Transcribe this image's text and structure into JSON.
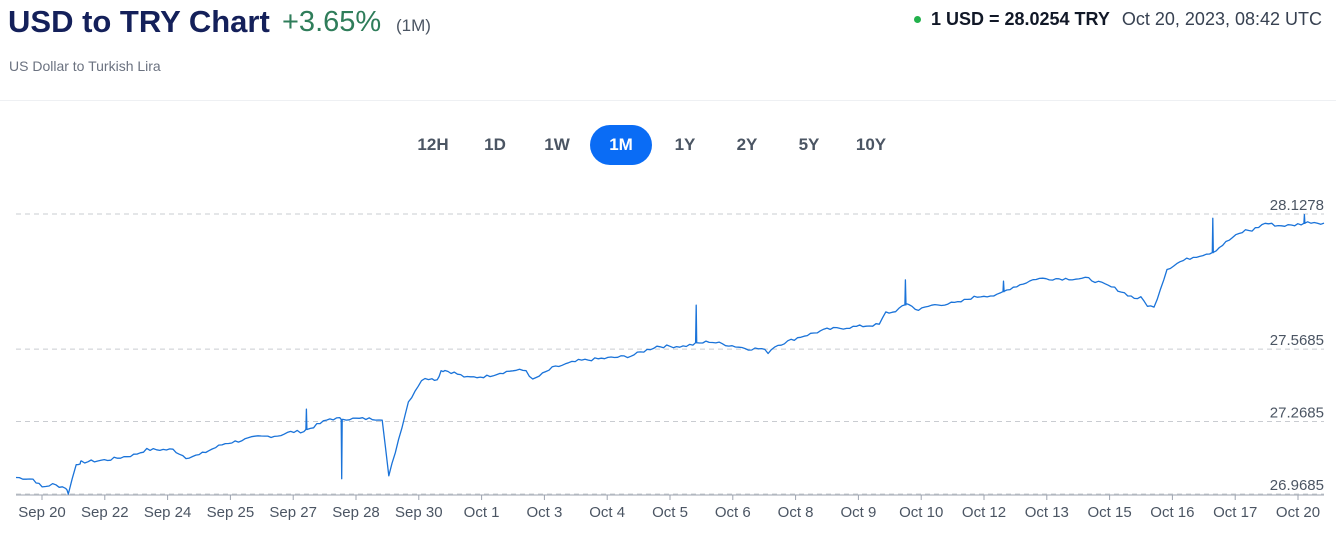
{
  "header": {
    "title": "USD to TRY Chart",
    "change": "+3.65%",
    "period": "(1M)",
    "subtitle": "US Dollar to Turkish Lira",
    "rate": "1 USD = 28.0254 TRY",
    "timestamp": "Oct 20, 2023, 08:42 UTC",
    "live_dot_color": "#22b14c"
  },
  "tabs": [
    {
      "label": "12H",
      "active": false
    },
    {
      "label": "1D",
      "active": false
    },
    {
      "label": "1W",
      "active": false
    },
    {
      "label": "1M",
      "active": true
    },
    {
      "label": "1Y",
      "active": false
    },
    {
      "label": "2Y",
      "active": false
    },
    {
      "label": "5Y",
      "active": false
    },
    {
      "label": "10Y",
      "active": false
    }
  ],
  "chart_data": {
    "type": "line",
    "title": "",
    "xlabel": "",
    "ylabel": "",
    "line_color": "#1a73d9",
    "y_ticks": [
      {
        "value": 28.1278,
        "label": "28.1278"
      },
      {
        "value": 27.5685,
        "label": "27.5685"
      },
      {
        "value": 27.2685,
        "label": "27.2685"
      },
      {
        "value": 26.9685,
        "label": "26.9685"
      }
    ],
    "x_ticks": [
      "Sep 20",
      "Sep 22",
      "Sep 24",
      "Sep 25",
      "Sep 27",
      "Sep 28",
      "Sep 30",
      "Oct 1",
      "Oct 3",
      "Oct 4",
      "Oct 5",
      "Oct 6",
      "Oct 8",
      "Oct 9",
      "Oct 10",
      "Oct 12",
      "Oct 13",
      "Oct 15",
      "Oct 16",
      "Oct 17",
      "Oct 20"
    ],
    "ylim": [
      26.9685,
      28.1278
    ],
    "xlim": [
      0,
      1
    ],
    "grid": "horizontal dashed",
    "series": [
      {
        "x": [
          0.0,
          0.013,
          0.02,
          0.028,
          0.038,
          0.04,
          0.046,
          0.049,
          0.05,
          0.07,
          0.09,
          0.1,
          0.12,
          0.13,
          0.14,
          0.155,
          0.16,
          0.17,
          0.18,
          0.185,
          0.2,
          0.21,
          0.22,
          0.24,
          0.26,
          0.28,
          0.285,
          0.3,
          0.31,
          0.318,
          0.322,
          0.325,
          0.328,
          0.335,
          0.345,
          0.36,
          0.37,
          0.38,
          0.39,
          0.395,
          0.41,
          0.43,
          0.45,
          0.47,
          0.48,
          0.485,
          0.49,
          0.5,
          0.51,
          0.53,
          0.54,
          0.55,
          0.56,
          0.57,
          0.575,
          0.58,
          0.6,
          0.62,
          0.64,
          0.66,
          0.665,
          0.67,
          0.68,
          0.68,
          0.69,
          0.7,
          0.72,
          0.73,
          0.74,
          0.75,
          0.76,
          0.78,
          0.8,
          0.82,
          0.84,
          0.855,
          0.86,
          0.865,
          0.87,
          0.88,
          0.89,
          0.9,
          0.915,
          0.93,
          0.94,
          0.945,
          0.955,
          0.965,
          0.975,
          0.985,
          0.99,
          1.0
        ],
        "y": [
          27.037,
          27.03,
          26.997,
          27.008,
          26.995,
          26.972,
          27.09,
          27.098,
          27.1,
          27.11,
          27.13,
          27.152,
          27.152,
          27.12,
          27.13,
          27.167,
          27.178,
          27.188,
          27.2,
          27.205,
          27.21,
          27.225,
          27.228,
          27.28,
          27.28,
          27.28,
          27.04,
          27.35,
          27.44,
          27.45,
          27.44,
          27.48,
          27.48,
          27.47,
          27.45,
          27.456,
          27.47,
          27.48,
          27.48,
          27.44,
          27.49,
          27.52,
          27.53,
          27.54,
          27.56,
          27.57,
          27.58,
          27.58,
          27.58,
          27.6,
          27.59,
          27.58,
          27.57,
          27.57,
          27.555,
          27.58,
          27.62,
          27.65,
          27.66,
          27.67,
          27.72,
          27.72,
          27.75,
          27.76,
          27.73,
          27.75,
          27.76,
          27.78,
          27.79,
          27.79,
          27.82,
          27.86,
          27.86,
          27.86,
          27.82,
          27.78,
          27.78,
          27.75,
          27.74,
          27.9,
          27.93,
          27.95,
          27.97,
          28.03,
          28.06,
          28.06,
          28.09,
          28.08,
          28.08,
          28.09,
          28.095,
          28.09
        ],
        "note_spikes": [
          {
            "x": 0.249,
            "y": 27.032
          },
          {
            "x": 0.222,
            "y": 27.32
          },
          {
            "x": 0.52,
            "y": 27.75
          },
          {
            "x": 0.68,
            "y": 27.855
          },
          {
            "x": 0.755,
            "y": 27.85
          },
          {
            "x": 0.915,
            "y": 28.11
          },
          {
            "x": 0.985,
            "y": 28.125
          }
        ]
      }
    ]
  }
}
